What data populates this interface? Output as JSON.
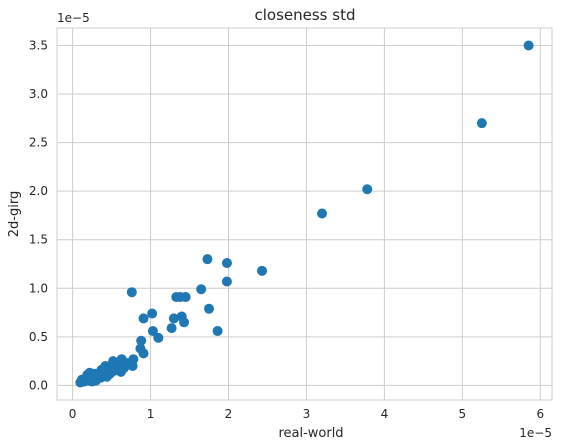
{
  "chart_data": {
    "type": "scatter",
    "title": "closeness std",
    "xlabel": "real-world",
    "ylabel": "2d-girg",
    "x_offset_text": "1e−5",
    "y_offset_text": "1e−5",
    "xlim": [
      -0.2,
      6.15
    ],
    "ylim": [
      -0.15,
      3.68
    ],
    "xticks": [
      "0",
      "1",
      "2",
      "3",
      "4",
      "5",
      "6"
    ],
    "xtick_values": [
      0,
      1,
      2,
      3,
      4,
      5,
      6
    ],
    "yticks": [
      "0.0",
      "0.5",
      "1.0",
      "1.5",
      "2.0",
      "2.5",
      "3.0",
      "3.5"
    ],
    "ytick_values": [
      0,
      0.5,
      1.0,
      1.5,
      2.0,
      2.5,
      3.0,
      3.5
    ],
    "grid": true,
    "legend": "none",
    "marker_color": "#1f77b4",
    "points": [
      [
        5.85,
        3.5
      ],
      [
        5.25,
        2.7
      ],
      [
        3.78,
        2.02
      ],
      [
        3.2,
        1.77
      ],
      [
        2.43,
        1.18
      ],
      [
        1.98,
        1.26
      ],
      [
        1.73,
        1.3
      ],
      [
        1.98,
        1.07
      ],
      [
        1.65,
        0.99
      ],
      [
        1.75,
        0.79
      ],
      [
        1.86,
        0.56
      ],
      [
        1.33,
        0.91
      ],
      [
        1.38,
        0.91
      ],
      [
        1.45,
        0.91
      ],
      [
        1.4,
        0.71
      ],
      [
        1.43,
        0.65
      ],
      [
        1.3,
        0.69
      ],
      [
        1.27,
        0.59
      ],
      [
        1.1,
        0.49
      ],
      [
        1.02,
        0.74
      ],
      [
        0.91,
        0.69
      ],
      [
        1.03,
        0.56
      ],
      [
        0.76,
        0.96
      ],
      [
        0.88,
        0.46
      ],
      [
        0.87,
        0.38
      ],
      [
        0.91,
        0.33
      ],
      [
        0.78,
        0.27
      ],
      [
        0.77,
        0.2
      ],
      [
        0.7,
        0.23
      ],
      [
        0.63,
        0.27
      ],
      [
        0.6,
        0.22
      ],
      [
        0.57,
        0.18
      ],
      [
        0.62,
        0.14
      ],
      [
        0.52,
        0.25
      ],
      [
        0.5,
        0.18
      ],
      [
        0.46,
        0.16
      ],
      [
        0.42,
        0.2
      ],
      [
        0.4,
        0.14
      ],
      [
        0.37,
        0.16
      ],
      [
        0.34,
        0.11
      ],
      [
        0.31,
        0.09
      ],
      [
        0.28,
        0.12
      ],
      [
        0.26,
        0.07
      ],
      [
        0.23,
        0.1
      ],
      [
        0.2,
        0.05
      ],
      [
        0.17,
        0.07
      ],
      [
        0.15,
        0.04
      ],
      [
        0.12,
        0.06
      ],
      [
        0.1,
        0.03
      ],
      [
        0.22,
        0.13
      ],
      [
        0.3,
        0.05
      ],
      [
        0.48,
        0.12
      ],
      [
        0.55,
        0.2
      ],
      [
        0.66,
        0.18
      ],
      [
        0.36,
        0.08
      ],
      [
        0.19,
        0.11
      ],
      [
        0.25,
        0.04
      ],
      [
        0.44,
        0.09
      ],
      [
        0.68,
        0.21
      ],
      [
        0.53,
        0.15
      ]
    ]
  }
}
